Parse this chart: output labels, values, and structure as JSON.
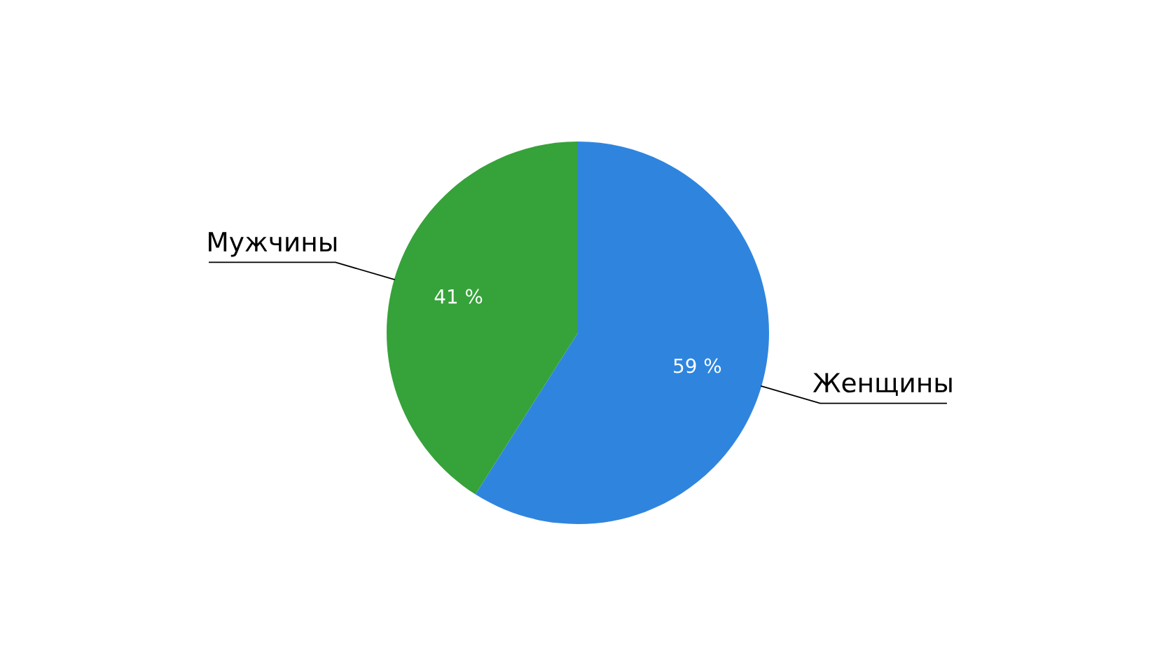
{
  "chart_data": {
    "type": "pie",
    "categories": [
      "Женщины",
      "Мужчины"
    ],
    "values": [
      59,
      41
    ],
    "colors": [
      "#2f85de",
      "#36a23a"
    ],
    "value_labels": [
      "59 %",
      "41 %"
    ]
  }
}
